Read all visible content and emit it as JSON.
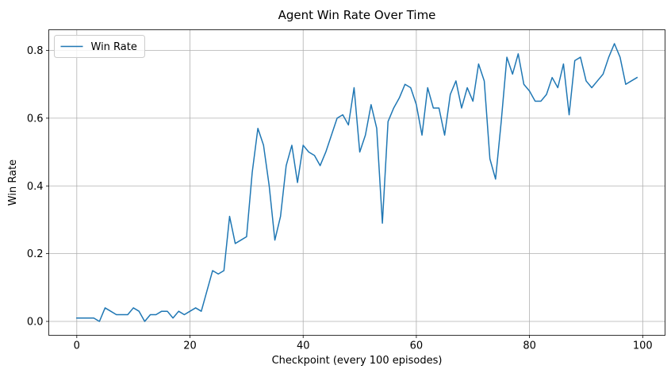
{
  "chart_data": {
    "type": "line",
    "title": "Agent Win Rate Over Time",
    "xlabel": "Checkpoint (every 100 episodes)",
    "ylabel": "Win Rate",
    "xlim": [
      -4.95,
      103.95
    ],
    "ylim": [
      -0.041,
      0.861
    ],
    "xticks": [
      0,
      20,
      40,
      60,
      80,
      100
    ],
    "yticks": [
      0.0,
      0.2,
      0.4,
      0.6,
      0.8
    ],
    "xtick_labels": [
      "0",
      "20",
      "40",
      "60",
      "80",
      "100"
    ],
    "ytick_labels": [
      "0.0",
      "0.2",
      "0.4",
      "0.6",
      "0.8"
    ],
    "grid": true,
    "legend_position": "upper-left",
    "series": [
      {
        "name": "Win Rate",
        "color": "#1f77b4",
        "x": [
          0,
          1,
          2,
          3,
          4,
          5,
          6,
          7,
          8,
          9,
          10,
          11,
          12,
          13,
          14,
          15,
          16,
          17,
          18,
          19,
          20,
          21,
          22,
          23,
          24,
          25,
          26,
          27,
          28,
          29,
          30,
          31,
          32,
          33,
          34,
          35,
          36,
          37,
          38,
          39,
          40,
          41,
          42,
          43,
          44,
          45,
          46,
          47,
          48,
          49,
          50,
          51,
          52,
          53,
          54,
          55,
          56,
          57,
          58,
          59,
          60,
          61,
          62,
          63,
          64,
          65,
          66,
          67,
          68,
          69,
          70,
          71,
          72,
          73,
          74,
          75,
          76,
          77,
          78,
          79,
          80,
          81,
          82,
          83,
          84,
          85,
          86,
          87,
          88,
          89,
          90,
          91,
          92,
          93,
          94,
          95,
          96,
          97,
          98,
          99
        ],
        "values": [
          0.01,
          0.01,
          0.01,
          0.01,
          0.0,
          0.04,
          0.03,
          0.02,
          0.02,
          0.02,
          0.04,
          0.03,
          0.0,
          0.02,
          0.02,
          0.03,
          0.03,
          0.01,
          0.03,
          0.02,
          0.03,
          0.04,
          0.03,
          0.09,
          0.15,
          0.14,
          0.15,
          0.31,
          0.23,
          0.24,
          0.25,
          0.44,
          0.57,
          0.52,
          0.4,
          0.24,
          0.31,
          0.46,
          0.52,
          0.41,
          0.52,
          0.5,
          0.49,
          0.46,
          0.5,
          0.55,
          0.6,
          0.61,
          0.58,
          0.69,
          0.5,
          0.55,
          0.64,
          0.57,
          0.29,
          0.59,
          0.63,
          0.66,
          0.7,
          0.69,
          0.64,
          0.55,
          0.69,
          0.63,
          0.63,
          0.55,
          0.67,
          0.71,
          0.63,
          0.69,
          0.65,
          0.76,
          0.71,
          0.48,
          0.42,
          0.59,
          0.78,
          0.73,
          0.79,
          0.7,
          0.68,
          0.65,
          0.65,
          0.67,
          0.72,
          0.69,
          0.76,
          0.61,
          0.77,
          0.78,
          0.71,
          0.69,
          0.71,
          0.73,
          0.78,
          0.82,
          0.78,
          0.7,
          0.71,
          0.72
        ]
      }
    ]
  }
}
